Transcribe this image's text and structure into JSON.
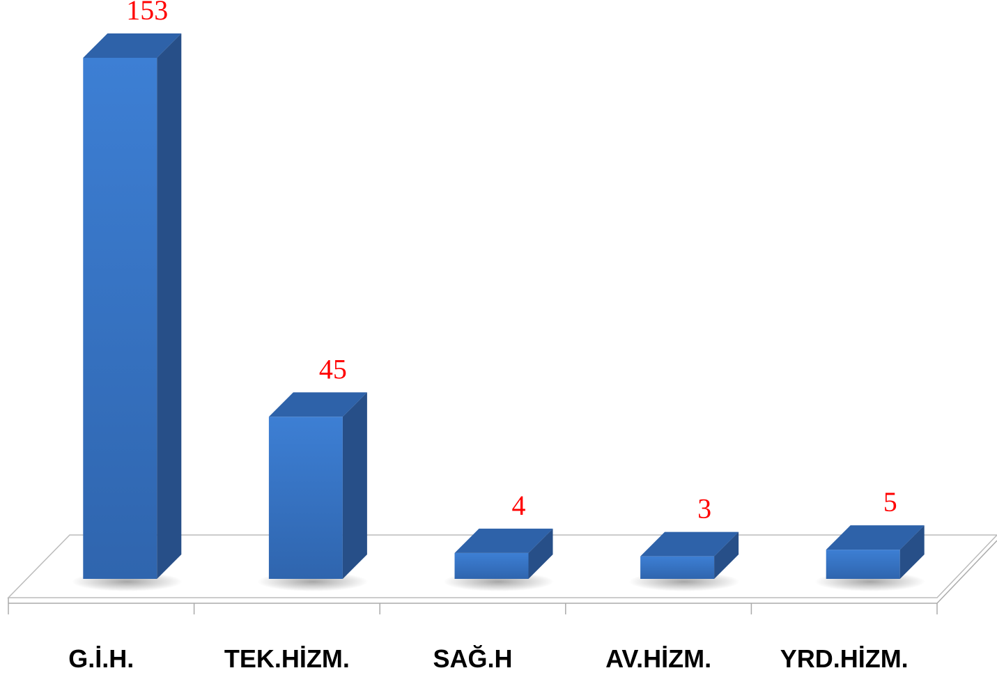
{
  "chart_data": {
    "type": "bar3d",
    "categories": [
      "G.İ.H.",
      "TEK.HİZM.",
      "SAĞ.H",
      "AV.HİZM.",
      "YRD.HİZM."
    ],
    "values": [
      153,
      45,
      4,
      3,
      5
    ],
    "color": "#3a7bd0"
  }
}
